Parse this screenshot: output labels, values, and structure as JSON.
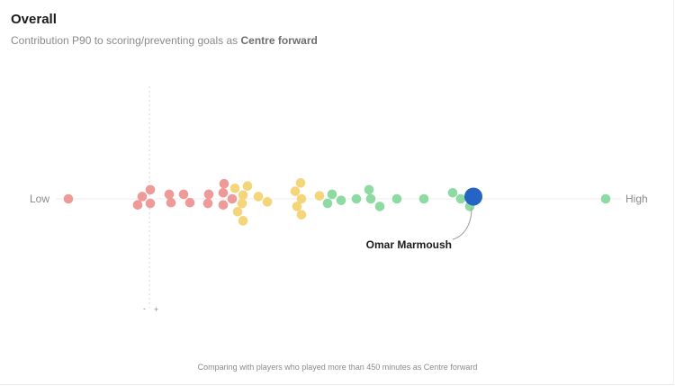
{
  "header": {
    "title": "Overall",
    "subtitle_prefix": "Contribution P90 to scoring/preventing goals as ",
    "subtitle_position": "Centre forward"
  },
  "footnote": "Comparing with players who played more than 450 minutes as Centre forward",
  "chart_data": {
    "type": "scatter",
    "axis": {
      "low_label": "Low",
      "high_label": "High",
      "minus_marker": "-",
      "plus_marker": "+"
    },
    "highlight": {
      "name": "Omar Marmoush",
      "color": "#2563c4"
    },
    "colors": {
      "low": "#ee9a98",
      "mid": "#f5d57a",
      "high": "#8ddba3"
    },
    "players": [
      {
        "x": 76,
        "y": 0,
        "tier": "low"
      },
      {
        "x": 153,
        "y": 0.8,
        "tier": "low"
      },
      {
        "x": 158,
        "y": -0.3,
        "tier": "low"
      },
      {
        "x": 167,
        "y": -1.2,
        "tier": "low"
      },
      {
        "x": 167,
        "y": 0.6,
        "tier": "low"
      },
      {
        "x": 188,
        "y": -0.6,
        "tier": "low"
      },
      {
        "x": 190,
        "y": 0.5,
        "tier": "low"
      },
      {
        "x": 204,
        "y": -0.6,
        "tier": "low"
      },
      {
        "x": 211,
        "y": 0.5,
        "tier": "low"
      },
      {
        "x": 232,
        "y": -0.6,
        "tier": "low"
      },
      {
        "x": 231,
        "y": 0.6,
        "tier": "low"
      },
      {
        "x": 249,
        "y": -2.0,
        "tier": "low"
      },
      {
        "x": 248,
        "y": -0.8,
        "tier": "low"
      },
      {
        "x": 248,
        "y": 0.8,
        "tier": "low"
      },
      {
        "x": 258,
        "y": 0,
        "tier": "low"
      },
      {
        "x": 261,
        "y": -1.4,
        "tier": "mid"
      },
      {
        "x": 270,
        "y": -0.5,
        "tier": "mid"
      },
      {
        "x": 269,
        "y": 0.6,
        "tier": "mid"
      },
      {
        "x": 264,
        "y": 1.7,
        "tier": "mid"
      },
      {
        "x": 270,
        "y": 2.9,
        "tier": "mid"
      },
      {
        "x": 275,
        "y": -1.7,
        "tier": "mid"
      },
      {
        "x": 287,
        "y": -0.3,
        "tier": "mid"
      },
      {
        "x": 297,
        "y": 0.4,
        "tier": "mid"
      },
      {
        "x": 334,
        "y": -2.1,
        "tier": "mid"
      },
      {
        "x": 328,
        "y": -1.0,
        "tier": "mid"
      },
      {
        "x": 335,
        "y": 0,
        "tier": "mid"
      },
      {
        "x": 330,
        "y": 1.0,
        "tier": "mid"
      },
      {
        "x": 335,
        "y": 2.1,
        "tier": "mid"
      },
      {
        "x": 355,
        "y": -0.4,
        "tier": "mid"
      },
      {
        "x": 369,
        "y": -0.6,
        "tier": "high"
      },
      {
        "x": 364,
        "y": 0.6,
        "tier": "high"
      },
      {
        "x": 379,
        "y": 0.2,
        "tier": "high"
      },
      {
        "x": 396,
        "y": 0,
        "tier": "high"
      },
      {
        "x": 410,
        "y": -1.2,
        "tier": "high"
      },
      {
        "x": 412,
        "y": 0,
        "tier": "high"
      },
      {
        "x": 422,
        "y": 1.0,
        "tier": "high"
      },
      {
        "x": 441,
        "y": 0,
        "tier": "high"
      },
      {
        "x": 471,
        "y": 0,
        "tier": "high"
      },
      {
        "x": 503,
        "y": -0.8,
        "tier": "high"
      },
      {
        "x": 512,
        "y": 0,
        "tier": "high"
      },
      {
        "x": 522,
        "y": 1.0,
        "tier": "high"
      },
      {
        "x": 673,
        "y": 0,
        "tier": "high"
      }
    ],
    "highlighted_player": {
      "x": 526,
      "y": -0.3
    }
  }
}
